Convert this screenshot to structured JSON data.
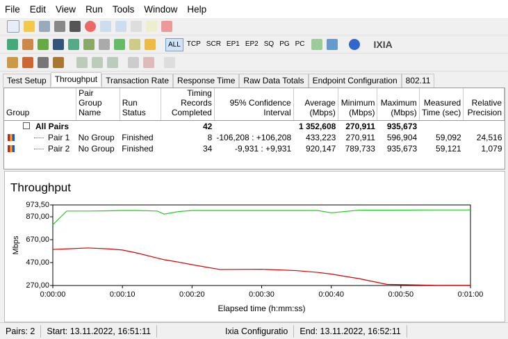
{
  "menu": [
    "File",
    "Edit",
    "View",
    "Run",
    "Tools",
    "Window",
    "Help"
  ],
  "toolbar_buttons": [
    "ALL",
    "TCP",
    "SCR",
    "EP1",
    "EP2",
    "SQ",
    "PG",
    "PC"
  ],
  "logo": "IXIA",
  "tabs": [
    "Test Setup",
    "Throughput",
    "Transaction Rate",
    "Response Time",
    "Raw Data Totals",
    "Endpoint Configuration",
    "802.11"
  ],
  "table": {
    "columns": [
      "Group",
      "Pair Group Name",
      "Run Status",
      "Timing Records Completed",
      "95% Confidence Interval",
      "Average (Mbps)",
      "Minimum (Mbps)",
      "Maximum (Mbps)",
      "Measured Time (sec)",
      "Relative Precision"
    ],
    "rows": [
      {
        "group": "All Pairs",
        "records": "42",
        "average": "1 352,608",
        "minimum": "270,911",
        "maximum": "935,673"
      },
      {
        "group": "Pair 1",
        "pair_group": "No Group",
        "status": "Finished",
        "records": "8",
        "confidence": "-106,208 : +106,208",
        "average": "433,223",
        "minimum": "270,911",
        "maximum": "596,904",
        "time": "59,092",
        "precision": "24,516"
      },
      {
        "group": "Pair 2",
        "pair_group": "No Group",
        "status": "Finished",
        "records": "34",
        "confidence": "-9,931 : +9,931",
        "average": "920,147",
        "minimum": "789,733",
        "maximum": "935,673",
        "time": "59,121",
        "precision": "1,079"
      }
    ]
  },
  "chart_data": {
    "type": "line",
    "title": "Throughput",
    "x_label": "Elapsed time (h:mm:ss)",
    "y_label": "Mbps",
    "x": [
      0,
      2,
      5,
      8,
      10,
      12,
      15,
      16,
      18,
      20,
      24,
      30,
      35,
      38,
      40,
      44,
      48,
      55,
      60
    ],
    "series": [
      {
        "name": "Pair 1",
        "color": "#d00000",
        "values": [
          585,
          590,
          598,
          590,
          580,
          555,
          510,
          495,
          475,
          452,
          410,
          412,
          400,
          385,
          370,
          330,
          280,
          272,
          272
        ]
      },
      {
        "name": "Pair 2",
        "color": "#22cc22",
        "values": [
          800,
          920,
          920,
          922,
          925,
          925,
          920,
          893,
          915,
          925,
          925,
          925,
          925,
          925,
          905,
          928,
          928,
          930,
          930
        ]
      }
    ],
    "xlim": [
      0,
      60
    ],
    "xticks": [
      {
        "value": 0,
        "label": "0:00:00"
      },
      {
        "value": 10,
        "label": "0:00:10"
      },
      {
        "value": 20,
        "label": "0:00:20"
      },
      {
        "value": 30,
        "label": "0:00:30"
      },
      {
        "value": 40,
        "label": "0:00:40"
      },
      {
        "value": 50,
        "label": "0:00:50"
      },
      {
        "value": 60,
        "label": "0:01:00"
      }
    ],
    "ylim": [
      270,
      973.5
    ],
    "yticks": [
      {
        "value": 270,
        "label": "270,00"
      },
      {
        "value": 470,
        "label": "470,00"
      },
      {
        "value": 670,
        "label": "670,00"
      },
      {
        "value": 870,
        "label": "870,00"
      },
      {
        "value": 973.5,
        "label": "973,50"
      }
    ],
    "grid": false
  },
  "status_bar": [
    "Pairs: 2",
    "Start: 13.11.2022, 16:51:11",
    "Ixia Configuratio",
    "End: 13.11.2022, 16:52:11"
  ]
}
